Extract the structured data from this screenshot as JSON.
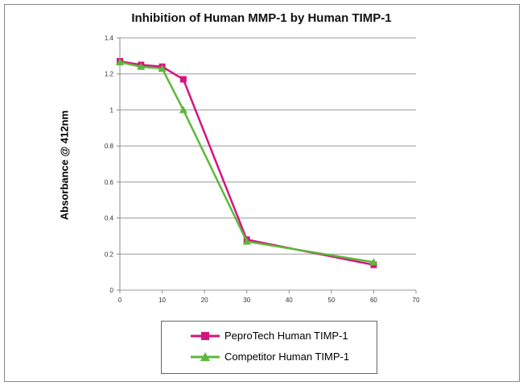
{
  "chart_data": {
    "type": "line",
    "title": "Inhibition of Human MMP-1 by Human TIMP-1",
    "xlabel": "",
    "ylabel": "Absorbance @ 412nm",
    "xlim": [
      0,
      70
    ],
    "ylim": [
      0,
      1.4
    ],
    "xticks": [
      0,
      10,
      20,
      30,
      40,
      50,
      60,
      70
    ],
    "yticks": [
      "0",
      "0.2",
      "0.4",
      "0.6",
      "0.8",
      "1",
      "1.2",
      "1.4"
    ],
    "grid": "horizontal",
    "legend": "bottom",
    "series": [
      {
        "name": "PeproTech Human TIMP-1",
        "color": "#d6137f",
        "marker": "square",
        "x": [
          0,
          5,
          10,
          15,
          30,
          60
        ],
        "y": [
          1.27,
          1.25,
          1.24,
          1.17,
          0.28,
          0.14
        ]
      },
      {
        "name": "Competitor Human TIMP-1",
        "color": "#5cb83a",
        "marker": "triangle",
        "x": [
          0,
          5,
          10,
          15,
          30,
          60
        ],
        "y": [
          1.265,
          1.24,
          1.23,
          1.0,
          0.27,
          0.155
        ]
      }
    ]
  }
}
